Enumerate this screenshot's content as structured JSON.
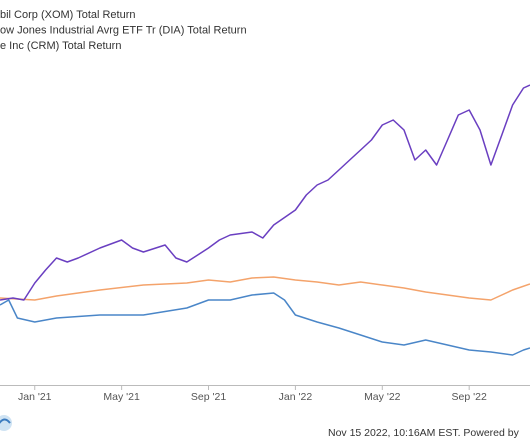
{
  "chart_data": {
    "type": "line",
    "legend": [
      "bil Corp (XOM) Total Return",
      "ow Jones Industrial Avrg ETF Tr (DIA) Total Return",
      "e Inc (CRM) Total Return"
    ],
    "footer": "Nov 15 2022, 10:16AM EST. Powered by",
    "xlim": [
      -1.6,
      22.8
    ],
    "xticks": [
      {
        "value": 0,
        "label": "Jan '21"
      },
      {
        "value": 4,
        "label": "May '21"
      },
      {
        "value": 8,
        "label": "Sep '21"
      },
      {
        "value": 12,
        "label": "Jan '22"
      },
      {
        "value": 16,
        "label": "May '22"
      },
      {
        "value": 20,
        "label": "Sep '22"
      }
    ],
    "ylim": [
      0,
      340
    ],
    "series": [
      {
        "name": "bil Corp (XOM) Total Return",
        "color": "#6a3fc1",
        "x": [
          -1.6,
          -1,
          -0.5,
          0,
          0.5,
          1,
          1.5,
          2,
          3,
          4,
          4.5,
          5,
          6,
          6.5,
          7,
          7.5,
          8,
          8.5,
          9,
          10,
          10.5,
          11,
          12,
          12.5,
          13,
          13.5,
          14,
          14.5,
          15,
          15.5,
          16,
          16.5,
          17,
          17.5,
          18,
          18.5,
          19,
          19.5,
          20,
          20.5,
          21,
          21.5,
          22,
          22.5,
          22.8
        ],
        "values": [
          85,
          87,
          85,
          102,
          115,
          127,
          123,
          127,
          137,
          145,
          137,
          133,
          140,
          127,
          123,
          130,
          137,
          145,
          150,
          153,
          147,
          160,
          175,
          190,
          200,
          205,
          215,
          225,
          235,
          245,
          260,
          265,
          255,
          225,
          235,
          220,
          245,
          270,
          275,
          255,
          220,
          250,
          280,
          297,
          300
        ]
      },
      {
        "name": "ow Jones Industrial Avrg ETF Tr (DIA) Total Return",
        "color": "#f4a36b",
        "x": [
          -1.6,
          0,
          1,
          3,
          5,
          7,
          8,
          9,
          10,
          11,
          12,
          13,
          14,
          15,
          16,
          17,
          18,
          19,
          20,
          21,
          22,
          22.8
        ],
        "values": [
          87,
          85,
          89,
          95,
          100,
          102,
          105,
          103,
          107,
          108,
          105,
          103,
          100,
          103,
          100,
          97,
          93,
          90,
          87,
          85,
          95,
          101
        ]
      },
      {
        "name": "e Inc (CRM) Total Return",
        "color": "#4a86c8",
        "x": [
          -1.6,
          -1.2,
          -0.8,
          0,
          1,
          3,
          5,
          7,
          8,
          9,
          10,
          11,
          11.5,
          12,
          13,
          14,
          15,
          16,
          17,
          18,
          19,
          20,
          21,
          22,
          22.5,
          22.8
        ],
        "values": [
          80,
          85,
          67,
          63,
          67,
          70,
          70,
          77,
          85,
          85,
          90,
          92,
          85,
          70,
          63,
          57,
          50,
          43,
          40,
          45,
          40,
          35,
          33,
          30,
          35,
          37
        ]
      }
    ]
  }
}
